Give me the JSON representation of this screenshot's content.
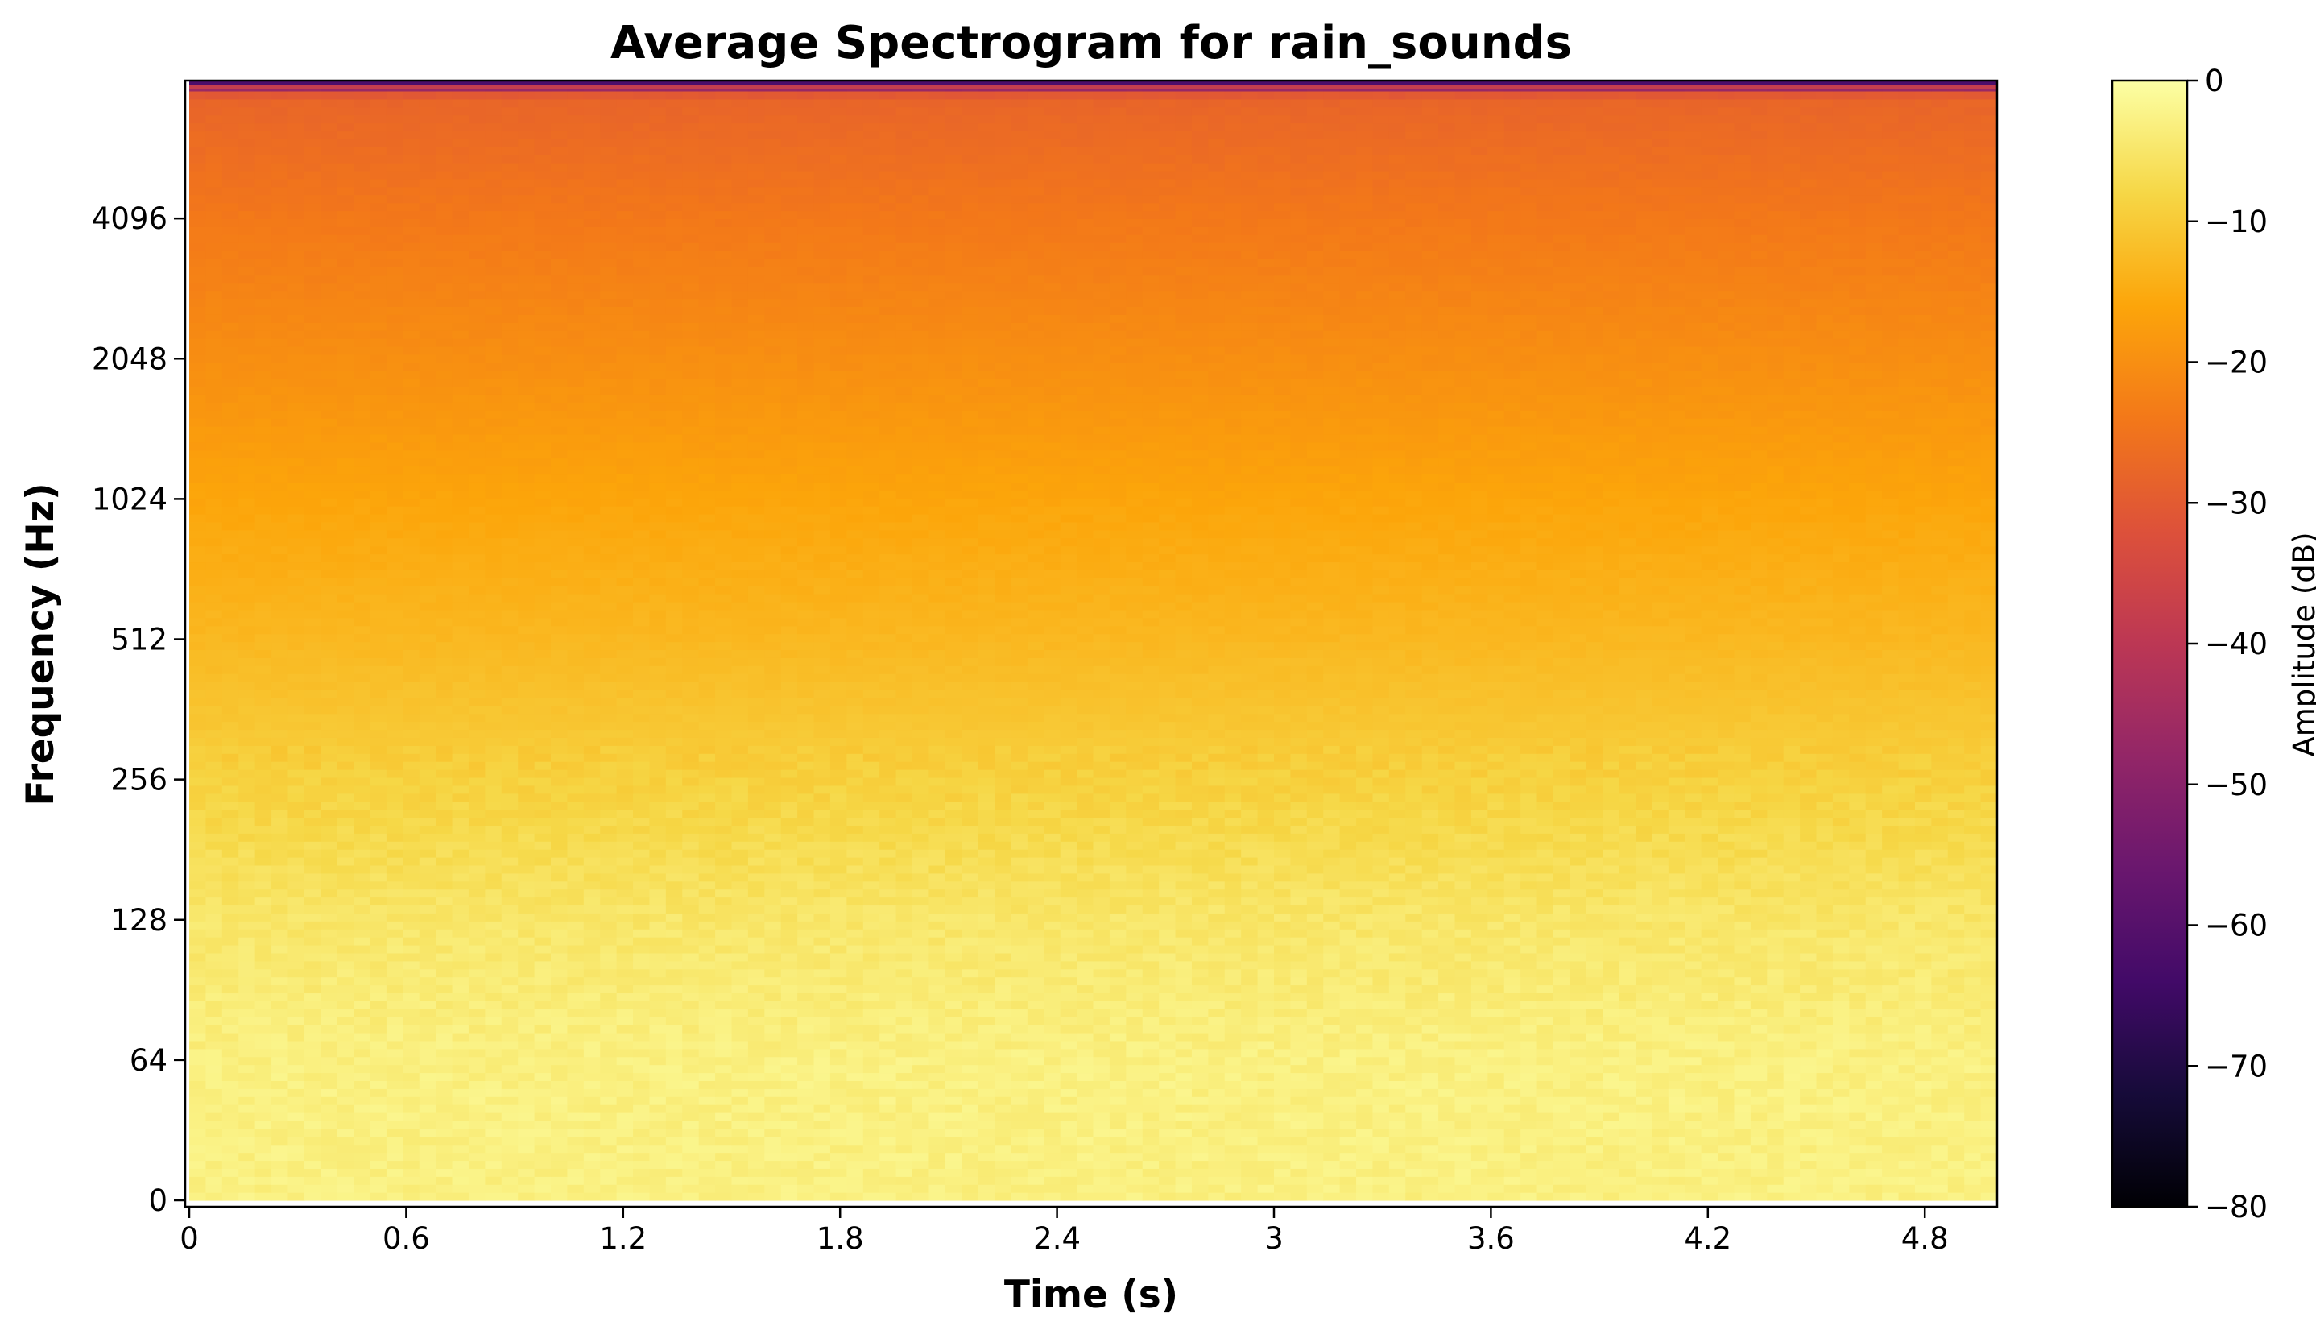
{
  "chart_data": {
    "type": "heatmap",
    "title": "Average Spectrogram for rain_sounds",
    "xlabel": "Time (s)",
    "ylabel": "Frequency (Hz)",
    "xlim": [
      0,
      5.0
    ],
    "x_ticks": [
      "0",
      "0.6",
      "1.2",
      "1.8",
      "2.4",
      "3",
      "3.6",
      "4.2",
      "4.8"
    ],
    "x_tick_values": [
      0,
      0.6,
      1.2,
      1.8,
      2.4,
      3.0,
      3.6,
      4.2,
      4.8
    ],
    "y_scale": "symlog (base 2, linear below 64 Hz)",
    "ylim": [
      0,
      8000
    ],
    "y_ticks": [
      "0",
      "64",
      "128",
      "256",
      "512",
      "1024",
      "2048",
      "4096"
    ],
    "y_tick_values": [
      0,
      64,
      128,
      256,
      512,
      1024,
      2048,
      4096
    ],
    "colormap": "inferno",
    "colorbar": {
      "label": "Amplitude (dB)",
      "range": [
        -80,
        0
      ],
      "ticks": [
        "0",
        "−10",
        "−20",
        "−30",
        "−40",
        "−50",
        "−60",
        "−70",
        "−80"
      ],
      "tick_values": [
        0,
        -10,
        -20,
        -30,
        -40,
        -50,
        -60,
        -70,
        -80
      ]
    },
    "frequency_profile_db": [
      {
        "freq": 0,
        "db": -3
      },
      {
        "freq": 64,
        "db": -3
      },
      {
        "freq": 128,
        "db": -5
      },
      {
        "freq": 256,
        "db": -9
      },
      {
        "freq": 512,
        "db": -13
      },
      {
        "freq": 1024,
        "db": -16
      },
      {
        "freq": 2048,
        "db": -20
      },
      {
        "freq": 4096,
        "db": -24
      },
      {
        "freq": 7500,
        "db": -28
      },
      {
        "freq": 8000,
        "db": -55
      }
    ],
    "time_frames": 110,
    "grid": false
  }
}
